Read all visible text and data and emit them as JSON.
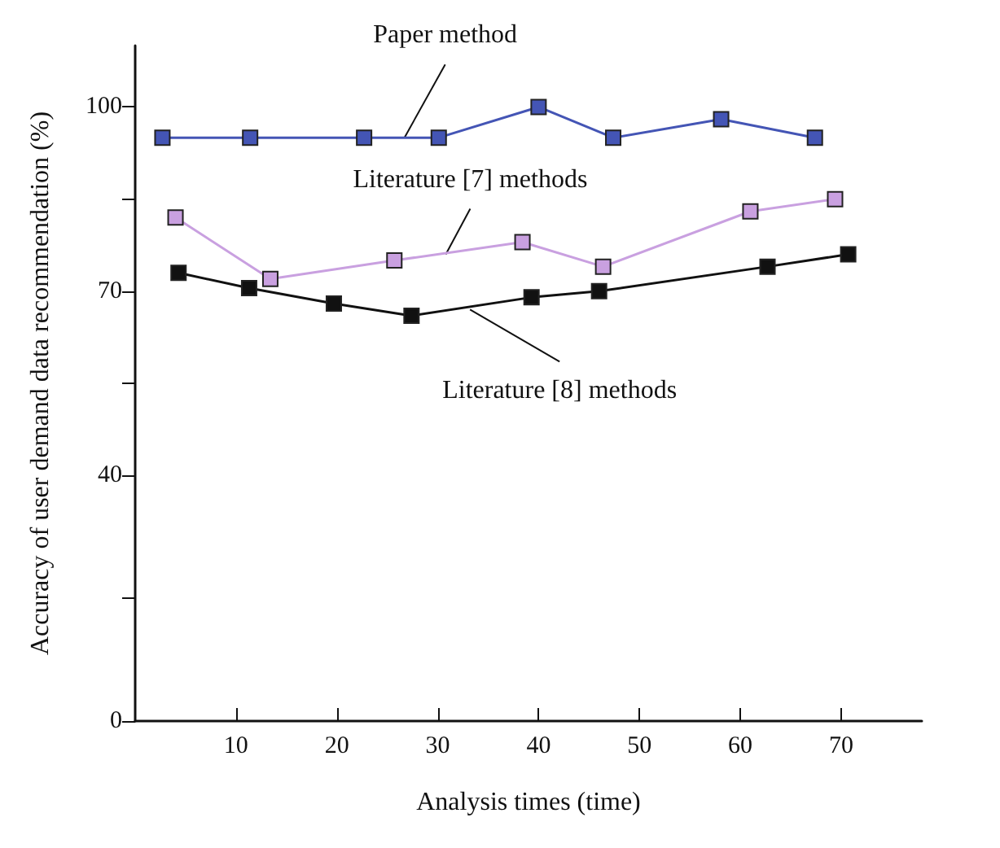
{
  "chart_data": {
    "type": "line",
    "xlabel": "Analysis times (time)",
    "ylabel": "Accuracy of user demand data recommendation (%)",
    "xlim": [
      0,
      78
    ],
    "xticks": [
      10,
      20,
      30,
      40,
      50,
      60,
      70
    ],
    "ylim": [
      0,
      110
    ],
    "yticks": [
      0,
      {
        "value": 20,
        "label": null
      },
      40,
      {
        "value": 55,
        "label": null
      },
      70,
      {
        "value": 85,
        "label": null
      },
      100
    ],
    "marker": "square",
    "line_style": "solid",
    "series": [
      {
        "color": "#4455b5",
        "x": [
          2.7,
          11.4,
          22.7,
          30.1,
          40,
          47.4,
          58.1,
          67.4
        ],
        "values": [
          95,
          95,
          95,
          95,
          100,
          95,
          98,
          95
        ]
      },
      {
        "color": "#c9a0e0",
        "x": [
          4.0,
          13.4,
          25.7,
          38.4,
          46.4,
          61.0,
          69.4
        ],
        "values": [
          82,
          72,
          75,
          78,
          74,
          83,
          85
        ]
      },
      {
        "color": "#111111",
        "x": [
          4.3,
          11.3,
          19.7,
          27.4,
          39.3,
          46.0,
          62.7,
          70.7
        ],
        "values": [
          73,
          70.5,
          68,
          66,
          69,
          70,
          74,
          76
        ]
      }
    ],
    "annotations": [
      {
        "text": "Paper method",
        "x": 26.7,
        "y": 95
      },
      {
        "text": "Literature [7] methods",
        "x": 30.8,
        "y": 76
      },
      {
        "text": "Literature [8] methods",
        "x": 33.2,
        "y": 67
      }
    ]
  }
}
